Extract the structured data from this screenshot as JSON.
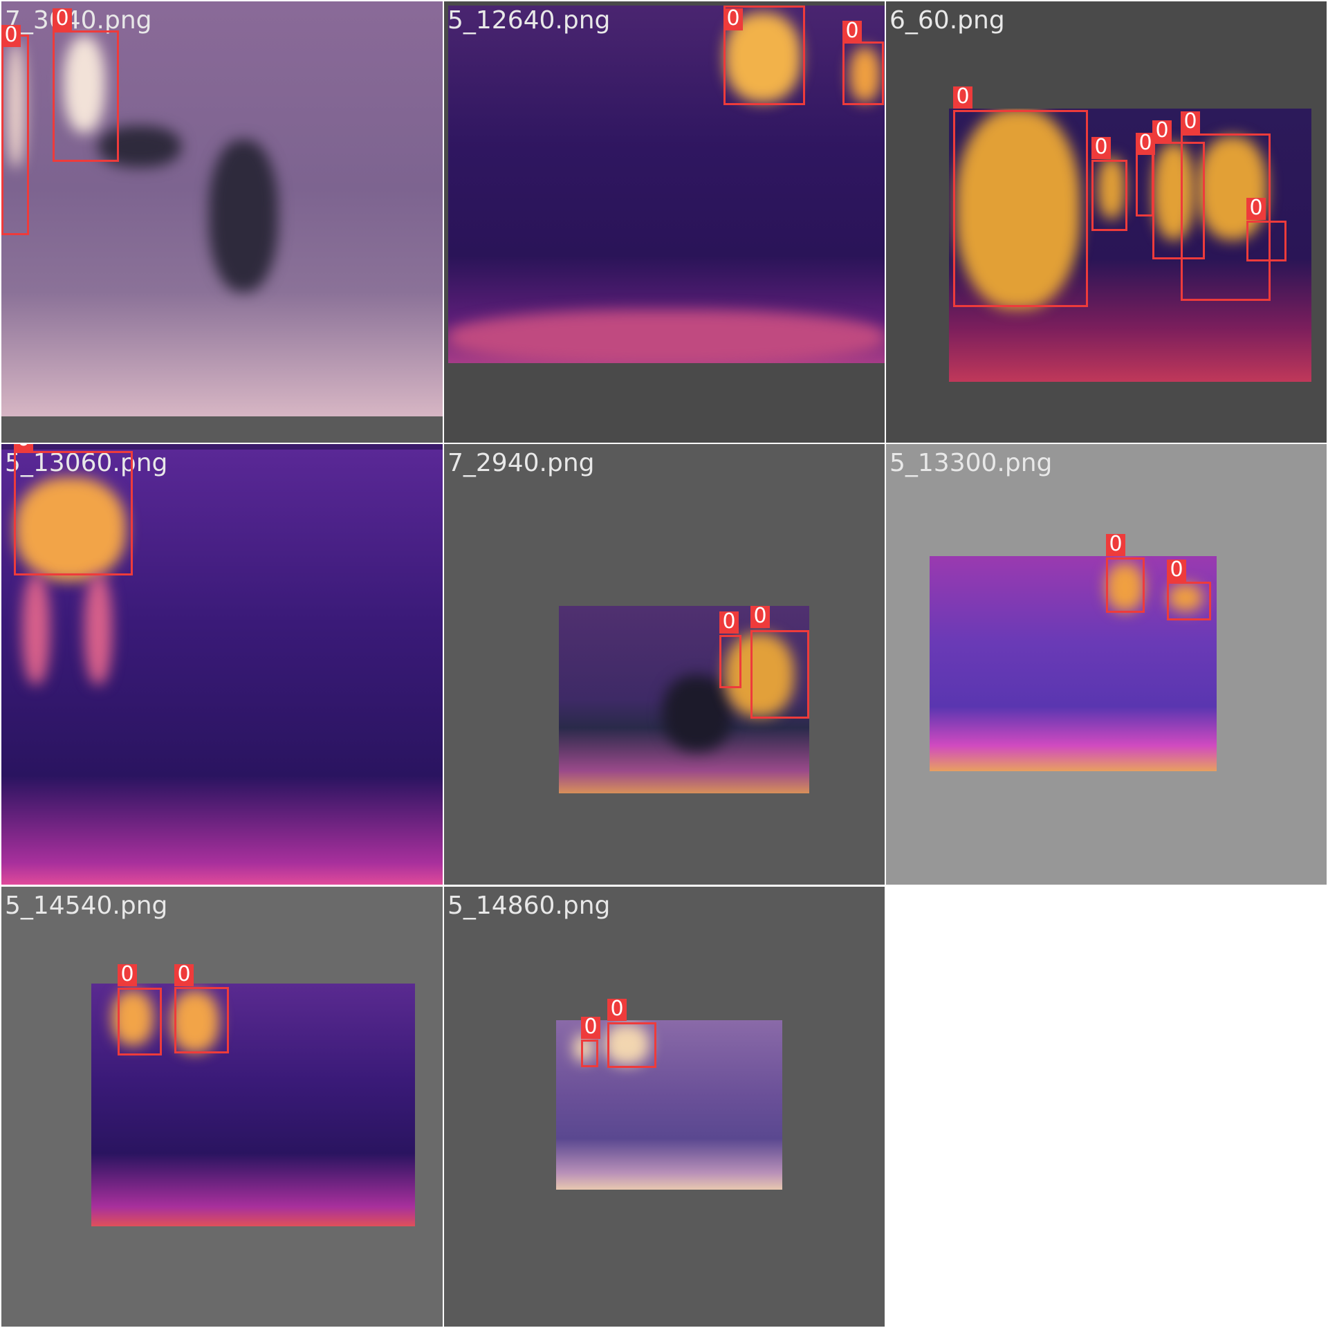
{
  "grid": [
    {
      "file": "7_3040.png",
      "bg": "#5a5a5a",
      "boxes": [
        {
          "label": "0"
        },
        {
          "label": "0"
        }
      ]
    },
    {
      "file": "5_12640.png",
      "bg": "#4a4a4a",
      "boxes": [
        {
          "label": "0"
        },
        {
          "label": "0"
        }
      ]
    },
    {
      "file": "6_60.png",
      "bg": "#4a4a4a",
      "boxes": [
        {
          "label": "0"
        },
        {
          "label": "0"
        },
        {
          "label": "0"
        },
        {
          "label": "0"
        },
        {
          "label": "0"
        },
        {
          "label": "0"
        },
        {
          "label": "0"
        }
      ]
    },
    {
      "file": "5_13060.png",
      "bg": "#3a1a6a",
      "boxes": [
        {
          "label": "0"
        }
      ]
    },
    {
      "file": "7_2940.png",
      "bg": "#5a5a5a",
      "boxes": [
        {
          "label": "0"
        },
        {
          "label": "0"
        }
      ]
    },
    {
      "file": "5_13300.png",
      "bg": "#979797",
      "boxes": [
        {
          "label": "0"
        },
        {
          "label": "0"
        }
      ]
    },
    {
      "file": "5_14540.png",
      "bg": "#6a6a6a",
      "boxes": [
        {
          "label": "0"
        },
        {
          "label": "0"
        }
      ]
    },
    {
      "file": "5_14860.png",
      "bg": "#5a5a5a",
      "boxes": [
        {
          "label": "0"
        },
        {
          "label": "0"
        }
      ]
    }
  ]
}
